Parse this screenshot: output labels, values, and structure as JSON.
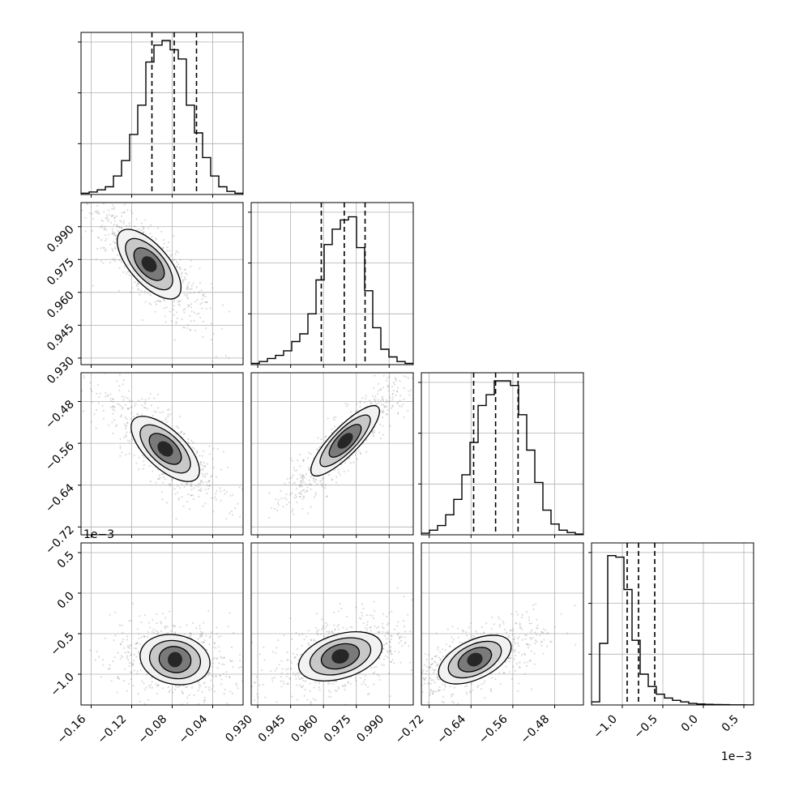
{
  "chart_data": {
    "type": "corner",
    "grid": true,
    "parameters": [
      {
        "range": [
          -0.17,
          -0.01
        ],
        "ticks": [
          -0.16,
          -0.12,
          -0.08,
          -0.04
        ],
        "tick_labels": [
          "−0.16",
          "−0.12",
          "−0.08",
          "−0.04"
        ],
        "quantiles": [
          -0.1,
          -0.078,
          -0.056
        ]
      },
      {
        "range": [
          0.927,
          1.001
        ],
        "ticks": [
          0.93,
          0.945,
          0.96,
          0.975,
          0.99
        ],
        "tick_labels": [
          "0.930",
          "0.945",
          "0.960",
          "0.975",
          "0.990"
        ],
        "quantiles": [
          0.959,
          0.9695,
          0.979
        ]
      },
      {
        "range": [
          -0.735,
          -0.425
        ],
        "ticks": [
          -0.72,
          -0.64,
          -0.56,
          -0.48
        ],
        "tick_labels": [
          "−0.72",
          "−0.64",
          "−0.56",
          "−0.48"
        ],
        "quantiles": [
          -0.635,
          -0.593,
          -0.55
        ]
      },
      {
        "range": [
          -1.38,
          0.62
        ],
        "ticks": [
          -1.0,
          -0.5,
          0.0,
          0.5
        ],
        "tick_labels": [
          "−1.0",
          "−0.5",
          "0.0",
          "0.5"
        ],
        "quantiles": [
          -0.94,
          -0.8,
          -0.6
        ],
        "scale_label": "1e−3"
      }
    ],
    "histograms": [
      [
        0.008,
        0.016,
        0.03,
        0.05,
        0.12,
        0.22,
        0.39,
        0.58,
        0.86,
        0.97,
        1.0,
        0.94,
        0.88,
        0.58,
        0.4,
        0.24,
        0.12,
        0.05,
        0.02,
        0.008
      ],
      [
        0.008,
        0.02,
        0.04,
        0.06,
        0.09,
        0.15,
        0.2,
        0.33,
        0.55,
        0.78,
        0.88,
        0.94,
        0.96,
        0.76,
        0.48,
        0.24,
        0.1,
        0.05,
        0.02,
        0.008
      ],
      [
        0.01,
        0.03,
        0.06,
        0.13,
        0.23,
        0.39,
        0.6,
        0.84,
        0.91,
        1.0,
        1.0,
        0.97,
        0.78,
        0.55,
        0.34,
        0.16,
        0.07,
        0.03,
        0.015,
        0.005
      ],
      [
        0.02,
        0.4,
        0.97,
        0.96,
        0.75,
        0.42,
        0.2,
        0.12,
        0.07,
        0.045,
        0.03,
        0.02,
        0.01,
        0.006,
        0.004,
        0.003,
        0.002,
        0.001,
        0.001,
        0.0
      ]
    ]
  }
}
